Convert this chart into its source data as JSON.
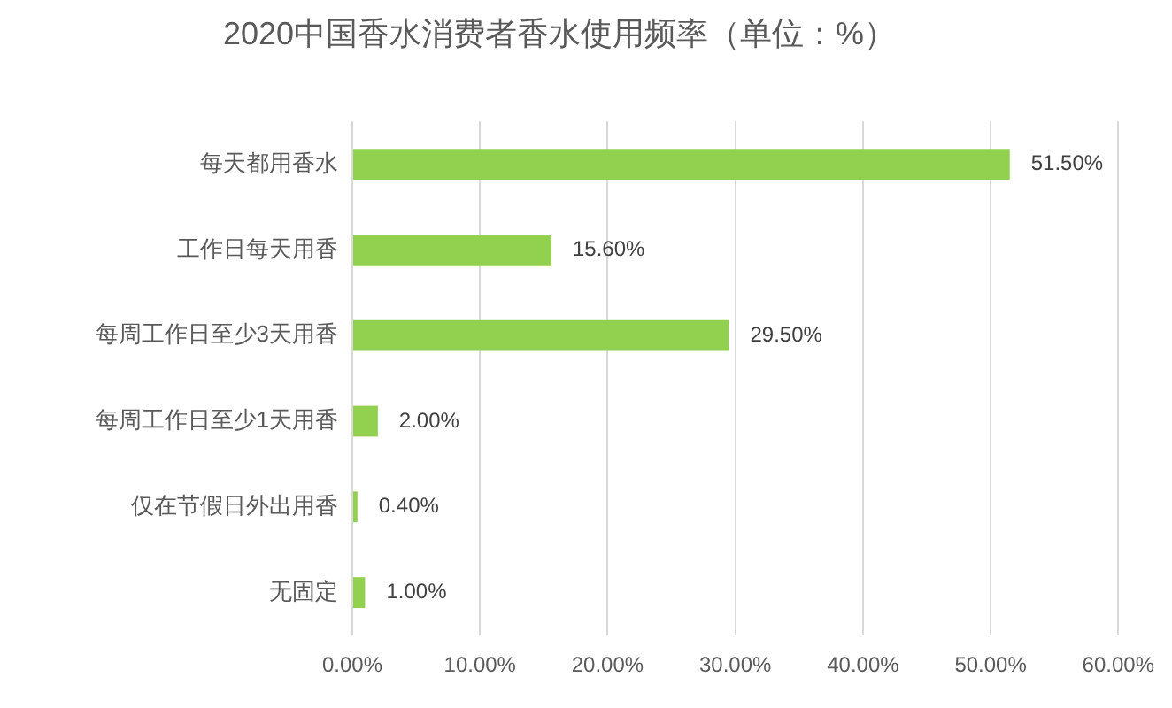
{
  "chart_data": {
    "type": "bar",
    "orientation": "horizontal",
    "title": "2020中国香水消费者香水使用频率（单位：%）",
    "categories": [
      "每天都用香水",
      "工作日每天用香",
      "每周工作日至少3天用香",
      "每周工作日至少1天用香",
      "仅在节假日外出用香",
      "无固定"
    ],
    "values": [
      51.5,
      15.6,
      29.5,
      2.0,
      0.4,
      1.0
    ],
    "value_labels": [
      "51.50%",
      "15.60%",
      "29.50%",
      "2.00%",
      "0.40%",
      "1.00%"
    ],
    "color": "#92d050",
    "xlim": [
      0,
      60
    ],
    "xticks": [
      {
        "value": 0,
        "label": "0.00%"
      },
      {
        "value": 10,
        "label": "10.00%"
      },
      {
        "value": 20,
        "label": "20.00%"
      },
      {
        "value": 30,
        "label": "30.00%"
      },
      {
        "value": 40,
        "label": "40.00%"
      },
      {
        "value": 50,
        "label": "50.00%"
      },
      {
        "value": 60,
        "label": "60.00%"
      }
    ],
    "grid": "x"
  }
}
